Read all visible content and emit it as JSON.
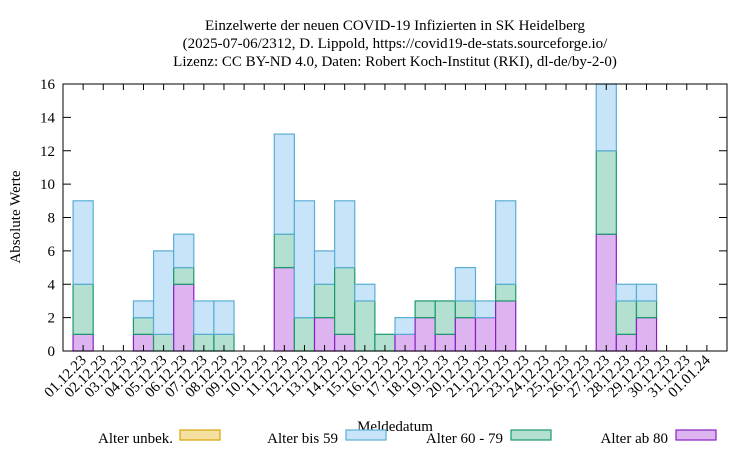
{
  "chart_data": {
    "type": "bar",
    "stacked": true,
    "title": [
      "Einzelwerte der neuen COVID-19 Infizierten in SK Heidelberg",
      "(2025-07-06/2312, D. Lippold, https://covid19-de-stats.sourceforge.io/",
      "Lizenz: CC BY-ND 4.0, Daten: Robert Koch-Institut (RKI), dl-de/by-2-0)"
    ],
    "xlabel": "Meldedatum",
    "ylabel": "Absolute Werte",
    "ylim": [
      0,
      16
    ],
    "yticks": [
      0,
      2,
      4,
      6,
      8,
      10,
      12,
      14,
      16
    ],
    "grid": false,
    "legend_position": "bottom",
    "categories": [
      "01.12.23",
      "02.12.23",
      "03.12.23",
      "04.12.23",
      "05.12.23",
      "06.12.23",
      "07.12.23",
      "08.12.23",
      "09.12.23",
      "10.12.23",
      "11.12.23",
      "12.12.23",
      "13.12.23",
      "14.12.23",
      "15.12.23",
      "16.12.23",
      "17.12.23",
      "18.12.23",
      "19.12.23",
      "20.12.23",
      "21.12.23",
      "22.12.23",
      "23.12.23",
      "24.12.23",
      "25.12.23",
      "26.12.23",
      "27.12.23",
      "28.12.23",
      "29.12.23",
      "30.12.23",
      "31.12.23",
      "01.01.24"
    ],
    "series": [
      {
        "name": "Alter unbek.",
        "color": "#f5dfa0",
        "stroke": "#d9a400",
        "values": [
          0,
          0,
          0,
          0,
          0,
          0,
          0,
          0,
          0,
          0,
          0,
          0,
          0,
          0,
          0,
          0,
          0,
          0,
          0,
          0,
          0,
          0,
          0,
          0,
          0,
          0,
          0,
          0,
          0,
          0,
          0,
          0
        ]
      },
      {
        "name": "Alter ab 80",
        "color": "#ddb4f0",
        "stroke": "#8a1fc4",
        "values": [
          1,
          0,
          0,
          1,
          0,
          4,
          0,
          0,
          0,
          0,
          5,
          0,
          2,
          1,
          0,
          0,
          1,
          2,
          1,
          2,
          2,
          3,
          0,
          0,
          0,
          0,
          7,
          1,
          2,
          0,
          0,
          0
        ]
      },
      {
        "name": "Alter 60 - 79",
        "color": "#b4e0d2",
        "stroke": "#1a9a6a",
        "values": [
          3,
          0,
          0,
          1,
          1,
          1,
          1,
          1,
          0,
          0,
          2,
          2,
          2,
          4,
          3,
          1,
          0,
          1,
          2,
          1,
          0,
          1,
          0,
          0,
          0,
          0,
          5,
          2,
          1,
          0,
          0,
          0
        ]
      },
      {
        "name": "Alter bis 59",
        "color": "#c8e4f8",
        "stroke": "#5aaed6",
        "values": [
          5,
          0,
          0,
          1,
          5,
          2,
          2,
          2,
          0,
          0,
          6,
          7,
          2,
          4,
          1,
          0,
          1,
          0,
          0,
          2,
          1,
          5,
          0,
          0,
          0,
          0,
          4,
          1,
          1,
          0,
          0,
          0
        ]
      }
    ],
    "legend_order": [
      "Alter unbek.",
      "Alter bis 59",
      "Alter 60 - 79",
      "Alter ab 80"
    ]
  }
}
